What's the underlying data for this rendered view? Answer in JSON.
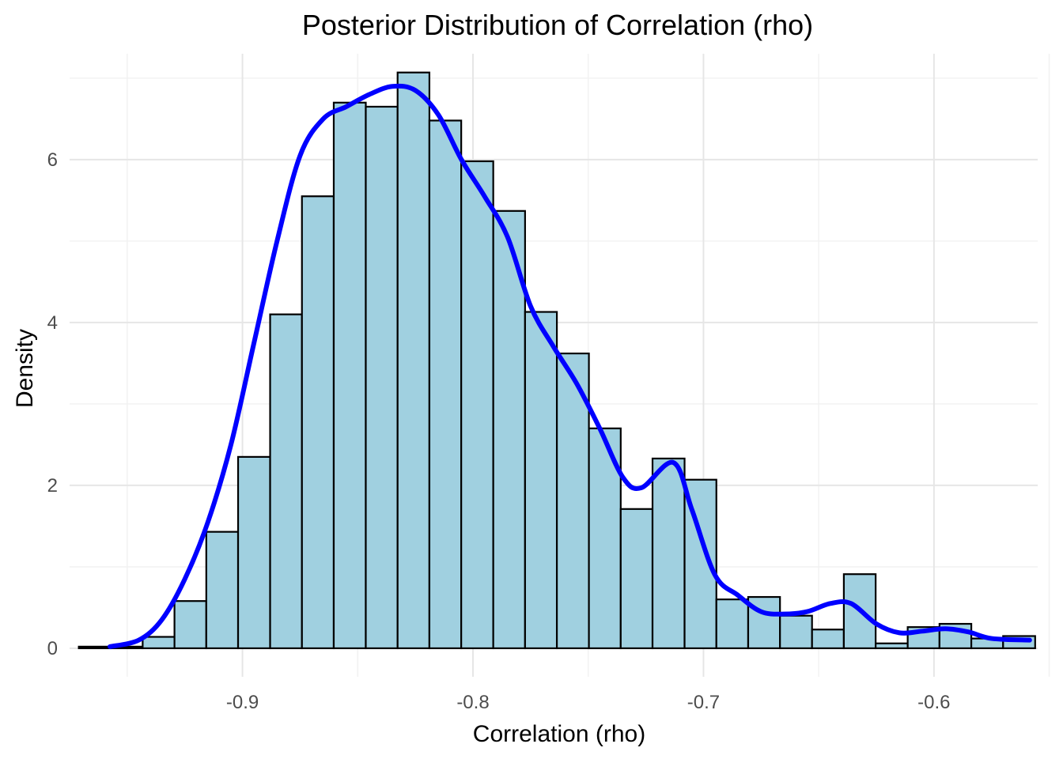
{
  "chart_data": {
    "type": "histogram",
    "title": "Posterior Distribution of Correlation (rho)",
    "xlabel": "Correlation (rho)",
    "ylabel": "Density",
    "xlim": [
      -0.975,
      -0.555
    ],
    "ylim": [
      -0.35,
      7.3
    ],
    "x_ticks": [
      -0.9,
      -0.8,
      -0.7,
      -0.6
    ],
    "x_tick_labels": [
      "-0.9",
      "-0.8",
      "-0.7",
      "-0.6"
    ],
    "x_minor_ticks": [
      -0.95,
      -0.85,
      -0.75,
      -0.65,
      -0.55
    ],
    "y_ticks": [
      0,
      2,
      4,
      6
    ],
    "y_tick_labels": [
      "0",
      "2",
      "4",
      "6"
    ],
    "y_minor_ticks": [
      1,
      3,
      5,
      7
    ],
    "grid": true,
    "bar_fill": "#a0d0e0",
    "bar_edge": "#000000",
    "density_color": "#0000ff",
    "bins": [
      {
        "x0": -0.971,
        "x1": -0.9572,
        "density": 0.02
      },
      {
        "x0": -0.9572,
        "x1": -0.9433,
        "density": 0.02
      },
      {
        "x0": -0.9433,
        "x1": -0.9295,
        "density": 0.14
      },
      {
        "x0": -0.9295,
        "x1": -0.9157,
        "density": 0.58
      },
      {
        "x0": -0.9157,
        "x1": -0.9019,
        "density": 1.43
      },
      {
        "x0": -0.9019,
        "x1": -0.888,
        "density": 2.35
      },
      {
        "x0": -0.888,
        "x1": -0.8742,
        "density": 4.1
      },
      {
        "x0": -0.8742,
        "x1": -0.8604,
        "density": 5.55
      },
      {
        "x0": -0.8604,
        "x1": -0.8465,
        "density": 6.7
      },
      {
        "x0": -0.8465,
        "x1": -0.8327,
        "density": 6.65
      },
      {
        "x0": -0.8327,
        "x1": -0.8189,
        "density": 7.07
      },
      {
        "x0": -0.8189,
        "x1": -0.8051,
        "density": 6.48
      },
      {
        "x0": -0.8051,
        "x1": -0.7912,
        "density": 5.98
      },
      {
        "x0": -0.7912,
        "x1": -0.7774,
        "density": 5.37
      },
      {
        "x0": -0.7774,
        "x1": -0.7636,
        "density": 4.13
      },
      {
        "x0": -0.7636,
        "x1": -0.7497,
        "density": 3.62
      },
      {
        "x0": -0.7497,
        "x1": -0.7359,
        "density": 2.7
      },
      {
        "x0": -0.7359,
        "x1": -0.7221,
        "density": 1.71
      },
      {
        "x0": -0.7221,
        "x1": -0.7082,
        "density": 2.33
      },
      {
        "x0": -0.7082,
        "x1": -0.6944,
        "density": 2.07
      },
      {
        "x0": -0.6944,
        "x1": -0.6806,
        "density": 0.6
      },
      {
        "x0": -0.6806,
        "x1": -0.6668,
        "density": 0.63
      },
      {
        "x0": -0.6668,
        "x1": -0.6529,
        "density": 0.4
      },
      {
        "x0": -0.6529,
        "x1": -0.6391,
        "density": 0.23
      },
      {
        "x0": -0.6391,
        "x1": -0.6253,
        "density": 0.91
      },
      {
        "x0": -0.6253,
        "x1": -0.6114,
        "density": 0.06
      },
      {
        "x0": -0.6114,
        "x1": -0.5976,
        "density": 0.26
      },
      {
        "x0": -0.5976,
        "x1": -0.5838,
        "density": 0.3
      },
      {
        "x0": -0.5838,
        "x1": -0.57,
        "density": 0.12
      },
      {
        "x0": -0.57,
        "x1": -0.5561,
        "density": 0.15
      }
    ],
    "density_curve": {
      "x": [
        -0.9575,
        -0.945,
        -0.935,
        -0.925,
        -0.915,
        -0.905,
        -0.895,
        -0.885,
        -0.875,
        -0.865,
        -0.855,
        -0.845,
        -0.835,
        -0.825,
        -0.815,
        -0.805,
        -0.795,
        -0.785,
        -0.775,
        -0.765,
        -0.755,
        -0.745,
        -0.735,
        -0.727,
        -0.713,
        -0.705,
        -0.695,
        -0.685,
        -0.675,
        -0.665,
        -0.655,
        -0.645,
        -0.636,
        -0.625,
        -0.615,
        -0.605,
        -0.595,
        -0.585,
        -0.575,
        -0.5585
      ],
      "y": [
        0.02,
        0.1,
        0.35,
        0.85,
        1.55,
        2.5,
        3.75,
        5.0,
        6.05,
        6.5,
        6.65,
        6.8,
        6.9,
        6.85,
        6.55,
        6.0,
        5.55,
        5.05,
        4.2,
        3.7,
        3.25,
        2.7,
        2.1,
        1.97,
        2.28,
        1.7,
        0.9,
        0.65,
        0.45,
        0.42,
        0.45,
        0.55,
        0.55,
        0.3,
        0.19,
        0.21,
        0.24,
        0.2,
        0.12,
        0.1
      ]
    }
  }
}
